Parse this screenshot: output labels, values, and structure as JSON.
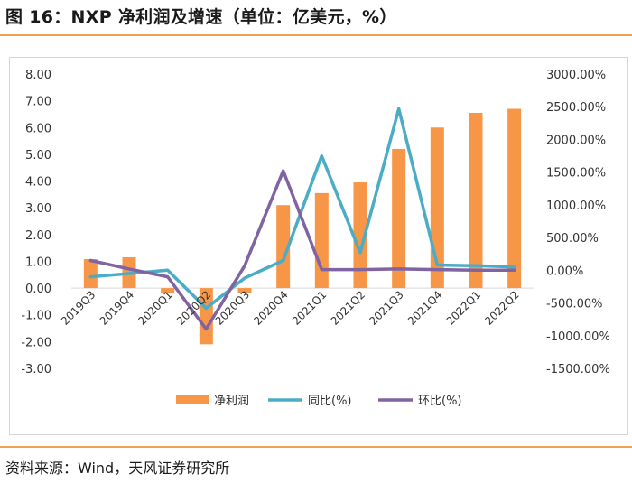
{
  "header": {
    "title": "图 16：NXP 净利润及增速（单位：亿美元，%）"
  },
  "footer": {
    "source": "资料来源：Wind，天风证券研究所"
  },
  "colors": {
    "bar": "#F79646",
    "yoy": "#4BACC6",
    "qoq": "#8064A2",
    "accent_rule": "#F0A050"
  },
  "chart_data": {
    "type": "bar+line",
    "categories": [
      "2019Q3",
      "2019Q4",
      "2020Q1",
      "2020Q2",
      "2020Q3",
      "2020Q4",
      "2021Q1",
      "2021Q2",
      "2021Q3",
      "2021Q4",
      "2022Q1",
      "2022Q2"
    ],
    "series": [
      {
        "name": "净利润",
        "type": "bar",
        "axis": "left",
        "values": [
          1.08,
          1.15,
          -0.18,
          -2.1,
          -0.18,
          3.1,
          3.55,
          3.95,
          5.2,
          6.0,
          6.55,
          6.7
        ]
      },
      {
        "name": "同比(%)",
        "type": "line",
        "axis": "right",
        "values": [
          -100,
          -50,
          0,
          -580,
          -120,
          150,
          1750,
          270,
          2470,
          80,
          70,
          50
        ]
      },
      {
        "name": "环比(%)",
        "type": "line",
        "axis": "right",
        "values": [
          150,
          20,
          -100,
          -900,
          70,
          1520,
          10,
          10,
          20,
          10,
          0,
          0
        ]
      }
    ],
    "y_left": {
      "min": -3,
      "max": 8,
      "step": 1,
      "tick_labels": [
        "-3.00",
        "-2.00",
        "-1.00",
        "0.00",
        "1.00",
        "2.00",
        "3.00",
        "4.00",
        "5.00",
        "6.00",
        "7.00",
        "8.00"
      ]
    },
    "y_right": {
      "min": -1500,
      "max": 3000,
      "step": 500,
      "tick_labels": [
        "-1500.00%",
        "-1000.00%",
        "-500.00%",
        "0.00%",
        "500.00%",
        "1000.00%",
        "1500.00%",
        "2000.00%",
        "2500.00%",
        "3000.00%"
      ]
    },
    "legend": {
      "position": "bottom",
      "items": [
        "净利润",
        "同比(%)",
        "环比(%)"
      ]
    }
  }
}
